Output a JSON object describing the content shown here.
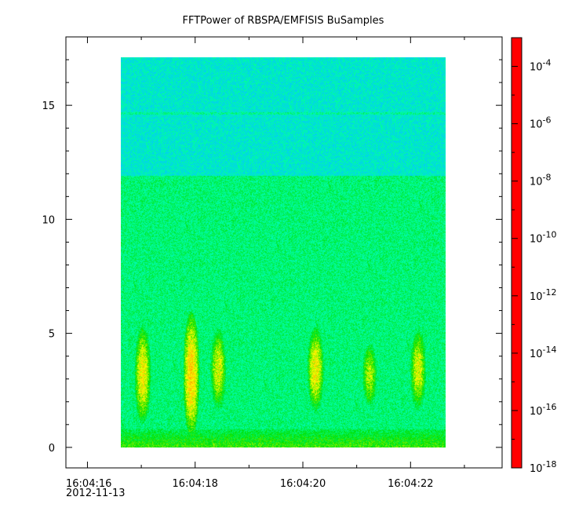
{
  "chart_data": {
    "type": "heatmap",
    "title": "FFTPower of RBSPA/EMFISIS  BuSamples",
    "x_ticks": [
      "16:04:16",
      "16:04:18",
      "16:04:20",
      "16:04:22"
    ],
    "x_start_date": "2012-11-13",
    "x_range": [
      "16:04:15.6",
      "16:04:23.7"
    ],
    "x_data_range": [
      "16:04:16.6",
      "16:04:22.6"
    ],
    "y_ticks": [
      0,
      5,
      10,
      15
    ],
    "y_range": [
      -0.9,
      18.0
    ],
    "y_data_range": [
      0,
      17.5
    ],
    "colorbar": {
      "scale": "log",
      "tick_exponents": [
        -4,
        -6,
        -8,
        -10,
        -12,
        -14,
        -16,
        -18
      ],
      "range": [
        1e-18,
        0.001
      ],
      "colormap": [
        "#00007f",
        "#0000ff",
        "#00c8ff",
        "#00ffa0",
        "#00e000",
        "#ffff00",
        "#ff8000",
        "#ff0000"
      ]
    },
    "background_level_exponent": -11,
    "upper_band": {
      "y_from": 12.2,
      "y_to": 17.5,
      "level_exponent": -12.5
    },
    "features": [
      {
        "y": 15.0,
        "note": "narrow line",
        "level_exponent": -11.5
      },
      {
        "t": "16:04:17.0",
        "y_from": 1.5,
        "y_to": 5.0,
        "level_exponent": -7
      },
      {
        "t": "16:04:17.9",
        "y_from": 1.0,
        "y_to": 5.5,
        "level_exponent": -6.5
      },
      {
        "t": "16:04:18.4",
        "y_from": 2.0,
        "y_to": 5.0,
        "level_exponent": -7.5
      },
      {
        "t": "16:04:20.2",
        "y_from": 2.0,
        "y_to": 5.0,
        "level_exponent": -7
      },
      {
        "t": "16:04:21.2",
        "y_from": 2.0,
        "y_to": 4.5,
        "level_exponent": -8
      },
      {
        "t": "16:04:22.1",
        "y_from": 2.0,
        "y_to": 5.0,
        "level_exponent": -7.5
      },
      {
        "y_from": 0,
        "y_to": 0.8,
        "note": "low-frequency band",
        "level_exponent": -9
      }
    ]
  }
}
